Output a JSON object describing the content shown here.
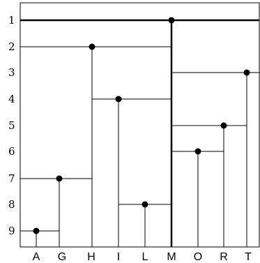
{
  "row_labels": [
    "1",
    "2",
    "3",
    "4",
    "5",
    "6",
    "7",
    "8",
    "9"
  ],
  "column_labels": [
    "A",
    "G",
    "H",
    "I",
    "L",
    "M",
    "O",
    "R",
    "T"
  ],
  "line_color": "#000000",
  "dot_color": "#000000",
  "nodes": [
    {
      "column": "M",
      "row": 1
    },
    {
      "column": "H",
      "row": 2
    },
    {
      "column": "T",
      "row": 3
    },
    {
      "column": "I",
      "row": 4
    },
    {
      "column": "R",
      "row": 5
    },
    {
      "column": "O",
      "row": 6
    },
    {
      "column": "G",
      "row": 7
    },
    {
      "column": "L",
      "row": 8
    },
    {
      "column": "A",
      "row": 9
    }
  ]
}
